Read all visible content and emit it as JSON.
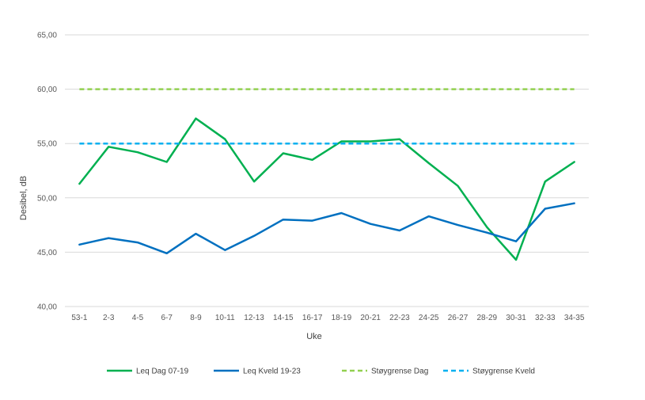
{
  "chart_data": {
    "type": "line",
    "title": "",
    "xlabel": "Uke",
    "ylabel": "Desibel, dB",
    "ylim": [
      40,
      65
    ],
    "yticks": [
      "40,00",
      "45,00",
      "50,00",
      "55,00",
      "60,00",
      "65,00"
    ],
    "grid": true,
    "legend_position": "bottom",
    "categories": [
      "53-1",
      "2-3",
      "4-5",
      "6-7",
      "8-9",
      "10-11",
      "12-13",
      "14-15",
      "16-17",
      "18-19",
      "20-21",
      "22-23",
      "24-25",
      "26-27",
      "28-29",
      "30-31",
      "32-33",
      "34-35"
    ],
    "series": [
      {
        "name": "Leq Dag 07-19",
        "color": "#00b050",
        "dashed": false,
        "values": [
          51.3,
          54.7,
          54.2,
          53.3,
          57.3,
          55.4,
          51.5,
          54.1,
          53.5,
          55.2,
          55.2,
          55.4,
          53.2,
          51.1,
          47.3,
          44.3,
          51.5,
          53.3
        ]
      },
      {
        "name": "Leq Kveld 19-23",
        "color": "#0070c0",
        "dashed": false,
        "values": [
          45.7,
          46.3,
          45.9,
          44.9,
          46.7,
          45.2,
          46.5,
          48.0,
          47.9,
          48.6,
          47.6,
          47.0,
          48.3,
          47.5,
          46.8,
          46.0,
          49.0,
          49.5
        ]
      },
      {
        "name": "Støygrense Dag",
        "color": "#92d050",
        "dashed": true,
        "values": [
          60,
          60,
          60,
          60,
          60,
          60,
          60,
          60,
          60,
          60,
          60,
          60,
          60,
          60,
          60,
          60,
          60,
          60
        ]
      },
      {
        "name": "Støygrense Kveld",
        "color": "#00b0f0",
        "dashed": true,
        "values": [
          55,
          55,
          55,
          55,
          55,
          55,
          55,
          55,
          55,
          55,
          55,
          55,
          55,
          55,
          55,
          55,
          55,
          55
        ]
      }
    ]
  }
}
